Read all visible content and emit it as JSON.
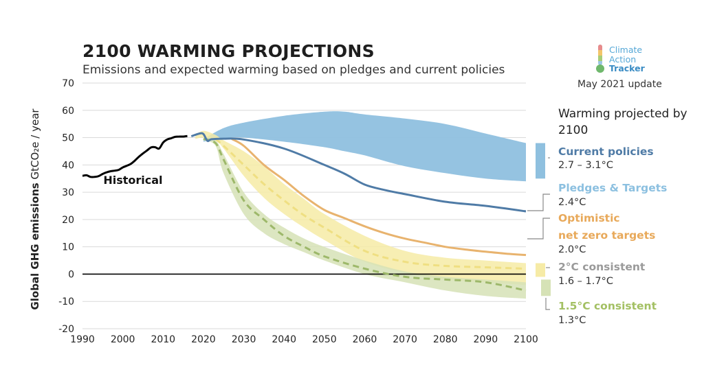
{
  "header": {
    "title": "2100 WARMING PROJECTIONS",
    "subtitle": "Emissions and expected warming based on pledges and current policies"
  },
  "brand": {
    "name_line1": "Climate",
    "name_line2": "Action",
    "name_line3": "Tracker",
    "update": "May 2021 update"
  },
  "panel": {
    "title": "Warming projected by 2100"
  },
  "scenarios": [
    {
      "name": "Current policies",
      "name_line2": "",
      "range": "2.7 – 3.1°C",
      "color": "#4f7ba6"
    },
    {
      "name": "Pledges & Targets",
      "name_line2": "",
      "range": "2.4°C",
      "color": "#8cc0e0"
    },
    {
      "name": "Optimistic",
      "name_line2": "net zero targets",
      "range": "2.0°C",
      "color": "#e8a95a"
    },
    {
      "name": "2°C consistent",
      "name_line2": "",
      "range": "1.6 – 1.7°C",
      "color": "#9a9a9a"
    },
    {
      "name": "1.5°C consistent",
      "name_line2": "",
      "range": "1.3°C",
      "color": "#a3c063"
    }
  ],
  "chart_data": {
    "type": "area",
    "title": "2100 WARMING PROJECTIONS",
    "subtitle": "Emissions and expected warming based on pledges and current policies",
    "ylabel_bold": "Global GHG emissions",
    "ylabel_unit": "GtCO₂e / year",
    "xlim": [
      1990,
      2100
    ],
    "ylim": [
      -20,
      70
    ],
    "x_ticks": [
      1990,
      2000,
      2010,
      2020,
      2030,
      2040,
      2050,
      2060,
      2070,
      2080,
      2090,
      2100
    ],
    "y_ticks": [
      -20,
      -10,
      0,
      10,
      20,
      30,
      40,
      50,
      60,
      70
    ],
    "grid": true,
    "colors": {
      "historical": "#000000",
      "current_band": "#8fc0df",
      "current_line": "#4f7ba6",
      "optimistic": "#e8b36e",
      "two_band": "#f6eba6",
      "two_line": "#efdf82",
      "onefive_band": "#d6e2b6",
      "onefive_line": "#9db86a"
    },
    "annotations": [
      {
        "text": "Historical",
        "x": 1995,
        "y": 33
      }
    ],
    "series": [
      {
        "name": "Historical",
        "kind": "line",
        "x": [
          1990,
          1991,
          1992,
          1993,
          1994,
          1995,
          1996,
          1997,
          1998,
          1999,
          2000,
          2001,
          2002,
          2003,
          2004,
          2005,
          2006,
          2007,
          2008,
          2009,
          2010,
          2011,
          2012,
          2013,
          2014,
          2015,
          2016
        ],
        "y": [
          36,
          36.2,
          35.6,
          35.6,
          35.9,
          36.7,
          37.3,
          37.7,
          37.9,
          38.2,
          39.1,
          39.7,
          40.4,
          41.6,
          43.0,
          44.2,
          45.3,
          46.4,
          46.5,
          46.0,
          48.2,
          49.3,
          49.8,
          50.3,
          50.4,
          50.4,
          50.6
        ]
      },
      {
        "name": "Current policies",
        "kind": "band",
        "x": [
          2020,
          2025,
          2030,
          2040,
          2050,
          2055,
          2060,
          2070,
          2080,
          2090,
          2100
        ],
        "upper": [
          49.5,
          53.5,
          55.5,
          58.0,
          59.5,
          59.5,
          58.5,
          57.0,
          55.0,
          51.5,
          48.0
        ],
        "lower": [
          48.5,
          49.8,
          50.0,
          48.5,
          46.5,
          45.0,
          43.5,
          39.5,
          37.0,
          35.0,
          34.0
        ]
      },
      {
        "name": "Pledges & Targets",
        "kind": "line",
        "x": [
          2017,
          2019,
          2020,
          2021,
          2022,
          2025,
          2030,
          2040,
          2050,
          2055,
          2060,
          2065,
          2070,
          2080,
          2090,
          2100
        ],
        "y": [
          50.5,
          51.5,
          51.3,
          48.8,
          49.4,
          49.6,
          49.3,
          46.0,
          40.0,
          36.8,
          32.8,
          30.8,
          29.3,
          26.5,
          25.0,
          23.0
        ]
      },
      {
        "name": "Optimistic net zero targets",
        "kind": "line",
        "x": [
          2027,
          2030,
          2035,
          2040,
          2045,
          2050,
          2055,
          2060,
          2065,
          2070,
          2075,
          2080,
          2085,
          2090,
          2095,
          2100
        ],
        "y": [
          49.5,
          47.0,
          40.0,
          34.5,
          28.5,
          23.5,
          20.5,
          17.5,
          15.0,
          13.0,
          11.5,
          10.0,
          9.0,
          8.2,
          7.5,
          7.0
        ]
      },
      {
        "name": "2°C consistent",
        "kind": "band",
        "x": [
          2018,
          2020,
          2023,
          2025,
          2030,
          2035,
          2040,
          2045,
          2050,
          2060,
          2070,
          2080,
          2090,
          2100
        ],
        "upper": [
          51,
          52.5,
          51,
          49,
          45,
          39.5,
          33,
          27.5,
          22,
          14,
          8.5,
          6,
          5,
          4
        ],
        "lower": [
          49.5,
          50,
          49,
          46,
          36,
          28,
          22,
          17,
          12.5,
          4.5,
          0.5,
          -2,
          -3,
          -4
        ],
        "center_x": [
          2023,
          2025,
          2030,
          2035,
          2040,
          2045,
          2050,
          2060,
          2070,
          2080,
          2090,
          2100
        ],
        "center": [
          49.5,
          47,
          40,
          33,
          27,
          21.5,
          17,
          8.5,
          4.5,
          3,
          2.5,
          2
        ]
      },
      {
        "name": "1.5°C consistent",
        "kind": "band",
        "x": [
          2020,
          2023,
          2025,
          2030,
          2035,
          2040,
          2045,
          2050,
          2060,
          2070,
          2080,
          2090,
          2100
        ],
        "upper": [
          50,
          49,
          44,
          30,
          22,
          17,
          13,
          10,
          5,
          1,
          -1,
          -2,
          -3
        ],
        "lower": [
          49,
          47,
          37,
          22,
          15,
          11,
          8,
          5,
          0,
          -3,
          -6,
          -8,
          -9
        ],
        "center_x": [
          2020,
          2023,
          2025,
          2030,
          2035,
          2040,
          2045,
          2050,
          2060,
          2070,
          2080,
          2090,
          2100
        ],
        "center": [
          49.5,
          48,
          42,
          27,
          20,
          14,
          10,
          6.5,
          2,
          -1,
          -2,
          -3,
          -6
        ]
      }
    ],
    "range_bars": [
      {
        "name": "Current policies",
        "ymin": 35,
        "ymax": 48
      },
      {
        "name": "2°C consistent",
        "ymin": -1,
        "ymax": 4
      },
      {
        "name": "1.5°C consistent",
        "ymin": -8,
        "ymax": -2
      }
    ]
  }
}
